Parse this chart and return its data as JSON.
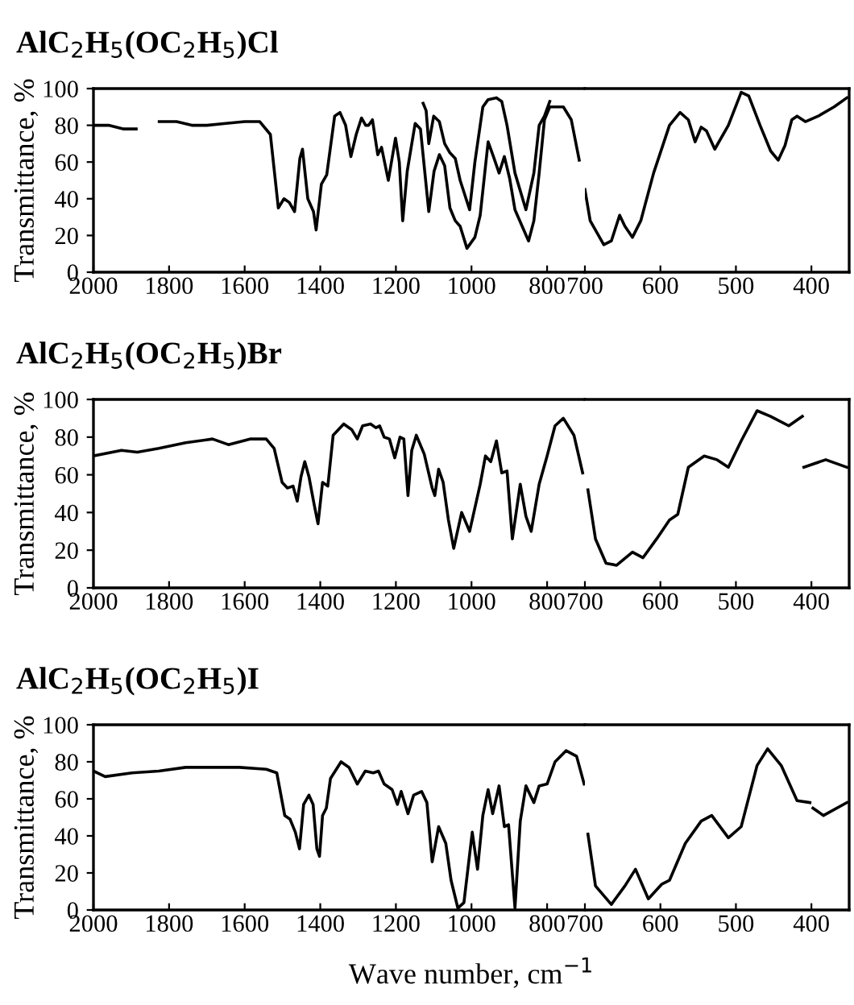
{
  "chart_data": [
    {
      "type": "line",
      "title": "AlC$_{2}$H$_{5}$(OC$_{2}$H$_{5}$)Cl",
      "ylabel": "Transmittance, %",
      "xlim": [
        2000,
        700
      ],
      "xticks": [
        2000,
        1800,
        1600,
        1400,
        1200,
        1000,
        800
      ],
      "ylim": [
        0,
        100
      ],
      "yticks": [
        0,
        20,
        40,
        60,
        80,
        100
      ],
      "grid": false,
      "series": [
        {
          "color": "#000000",
          "x": [
            2000,
            1960,
            1920,
            1887,
            1860,
            1826,
            1780,
            1740,
            1700,
            1650,
            1600,
            1560,
            1532,
            1511,
            1496,
            1482,
            1468,
            1454,
            1447,
            1433,
            1418,
            1411,
            1397,
            1383,
            1362,
            1348,
            1333,
            1319,
            1305,
            1291,
            1280,
            1272,
            1262,
            1248,
            1238,
            1220,
            1201,
            1191,
            1182,
            1170,
            1149,
            1135,
            1113,
            1099,
            1085,
            1071,
            1057,
            1043,
            1030,
            1012,
            991,
            977,
            956,
            942,
            927,
            913,
            899,
            885,
            849,
            835,
            821,
            807,
            793,
            757,
            736,
            715
          ],
          "values": [
            80,
            80,
            78,
            78,
            null,
            82,
            82,
            80,
            80,
            81,
            82,
            82,
            75,
            35,
            40,
            38,
            33,
            62,
            67,
            40,
            33,
            23,
            48,
            53,
            85,
            87,
            80,
            63,
            75,
            84,
            80,
            80,
            83,
            64,
            68,
            50,
            73,
            60,
            28,
            55,
            81,
            78,
            33,
            55,
            64,
            58,
            35,
            28,
            25,
            13,
            19,
            31,
            71,
            63,
            54,
            63,
            51,
            34,
            17,
            28,
            54,
            83,
            90,
            90,
            83,
            61
          ]
        },
        {
          "color": "#000000",
          "x": [
            1128,
            1120,
            1113,
            1100,
            1085,
            1071,
            1057,
            1043,
            1030,
            1005,
            991,
            977,
            970,
            956,
            934,
            920,
            906,
            885,
            856,
            835,
            821,
            807,
            793
          ],
          "values": [
            92,
            88,
            70,
            85,
            82,
            70,
            65,
            62,
            50,
            34,
            60,
            80,
            90,
            94,
            95,
            93,
            80,
            54,
            34,
            54,
            80,
            85,
            93
          ]
        }
      ]
    },
    {
      "type": "line",
      "xlim": [
        700,
        350
      ],
      "xticks": [
        700,
        600,
        500,
        400
      ],
      "ylim": [
        0,
        100
      ],
      "tick_labels": "x",
      "grid": false,
      "series": [
        {
          "color": "#000000",
          "x": [
            700,
            693,
            675,
            665,
            654,
            647,
            637,
            626,
            609,
            588,
            574,
            563,
            554,
            546,
            539,
            528,
            510,
            493,
            483,
            468,
            454,
            444,
            435,
            426,
            419,
            408,
            391,
            370,
            353
          ],
          "values": [
            45,
            28,
            15,
            17,
            31,
            25,
            19,
            28,
            54,
            80,
            87,
            83,
            71,
            79,
            77,
            67,
            80,
            98,
            96,
            80,
            66,
            61,
            69,
            83,
            85,
            82,
            85,
            90,
            95
          ]
        }
      ]
    },
    {
      "type": "line",
      "title": "AlC$_{2}$H$_{5}$(OC$_{2}$H$_{5}$)Br",
      "ylabel": "Transmittance, %",
      "xlim": [
        2000,
        700
      ],
      "xticks": [
        2000,
        1800,
        1600,
        1400,
        1200,
        1000,
        800
      ],
      "ylim": [
        0,
        100
      ],
      "yticks": [
        0,
        20,
        40,
        60,
        80,
        100
      ],
      "grid": false,
      "series": [
        {
          "color": "#000000",
          "x": [
            2000,
            1926,
            1884,
            1827,
            1756,
            1685,
            1643,
            1586,
            1543,
            1522,
            1501,
            1487,
            1472,
            1461,
            1451,
            1441,
            1430,
            1416,
            1406,
            1394,
            1380,
            1366,
            1338,
            1317,
            1302,
            1288,
            1267,
            1253,
            1243,
            1231,
            1217,
            1203,
            1189,
            1179,
            1168,
            1158,
            1146,
            1125,
            1104,
            1097,
            1087,
            1075,
            1061,
            1047,
            1026,
            1005,
            977,
            963,
            949,
            934,
            920,
            906,
            892,
            871,
            856,
            842,
            821,
            800,
            779,
            757,
            729,
            706
          ],
          "values": [
            70,
            73,
            72,
            74,
            77,
            79,
            76,
            79,
            79,
            74,
            56,
            53,
            54,
            46,
            59,
            67,
            59,
            44,
            34,
            56,
            54,
            81,
            87,
            84,
            79,
            86,
            87,
            85,
            86,
            80,
            79,
            69,
            80,
            79,
            49,
            73,
            81,
            71,
            53,
            49,
            63,
            56,
            36,
            21,
            40,
            30,
            55,
            70,
            67,
            78,
            61,
            62,
            26,
            55,
            38,
            30,
            55,
            70,
            86,
            90,
            81,
            61
          ]
        }
      ]
    },
    {
      "type": "line",
      "xlim": [
        700,
        350
      ],
      "xticks": [
        700,
        600,
        500,
        400
      ],
      "ylim": [
        0,
        100
      ],
      "tick_labels": "x",
      "grid": false,
      "series": [
        {
          "color": "#000000",
          "x": [
            696,
            686,
            672,
            658,
            637,
            623,
            605,
            588,
            577,
            563,
            542,
            525,
            510,
            493,
            472,
            454,
            430,
            412,
            411,
            410,
            381,
            353
          ],
          "values": [
            52,
            26,
            13,
            12,
            19,
            16,
            26,
            36,
            39,
            64,
            70,
            68,
            64,
            78,
            94,
            91,
            86,
            91,
            null,
            64,
            68,
            64
          ]
        }
      ]
    },
    {
      "type": "line",
      "title": "AlC$_{2}$H$_{5}$(OC$_{2}$H$_{5}$)I",
      "ylabel": "Transmittance, %",
      "xlim": [
        2000,
        700
      ],
      "xticks": [
        2000,
        1800,
        1600,
        1400,
        1200,
        1000,
        800
      ],
      "ylim": [
        0,
        100
      ],
      "yticks": [
        0,
        20,
        40,
        60,
        80,
        100
      ],
      "grid": false,
      "series": [
        {
          "color": "#000000",
          "x": [
            2000,
            1969,
            1898,
            1827,
            1756,
            1685,
            1614,
            1543,
            1515,
            1494,
            1480,
            1466,
            1455,
            1444,
            1430,
            1419,
            1409,
            1402,
            1394,
            1384,
            1373,
            1345,
            1324,
            1302,
            1281,
            1260,
            1246,
            1231,
            1210,
            1196,
            1186,
            1168,
            1153,
            1132,
            1118,
            1104,
            1087,
            1068,
            1054,
            1036,
            1020,
            998,
            984,
            970,
            956,
            944,
            927,
            913,
            902,
            885,
            871,
            856,
            835,
            821,
            800,
            779,
            750,
            722,
            702
          ],
          "values": [
            75,
            72,
            74,
            75,
            77,
            77,
            77,
            76,
            74,
            51,
            49,
            42,
            33,
            57,
            62,
            57,
            33,
            29,
            51,
            55,
            71,
            80,
            77,
            68,
            75,
            74,
            75,
            68,
            65,
            57,
            64,
            52,
            62,
            64,
            58,
            26,
            45,
            36,
            16,
            1,
            4,
            42,
            22,
            51,
            65,
            52,
            67,
            45,
            46,
            1,
            48,
            67,
            58,
            67,
            68,
            80,
            86,
            83,
            68
          ]
        }
      ]
    },
    {
      "type": "line",
      "xlim": [
        700,
        350
      ],
      "xticks": [
        700,
        600,
        500,
        400
      ],
      "ylim": [
        0,
        100
      ],
      "tick_labels": "x",
      "grid": false,
      "xlabel": "Wave number, cm$^{−1}$",
      "series": [
        {
          "color": "#000000",
          "x": [
            696,
            686,
            665,
            647,
            633,
            616,
            598,
            588,
            567,
            546,
            532,
            510,
            493,
            472,
            458,
            440,
            419,
            402,
            400,
            398,
            384,
            353
          ],
          "values": [
            41,
            13,
            3,
            13,
            22,
            6,
            14,
            16,
            36,
            48,
            51,
            39,
            45,
            78,
            87,
            78,
            59,
            58,
            null,
            55,
            51,
            58
          ]
        }
      ]
    }
  ]
}
